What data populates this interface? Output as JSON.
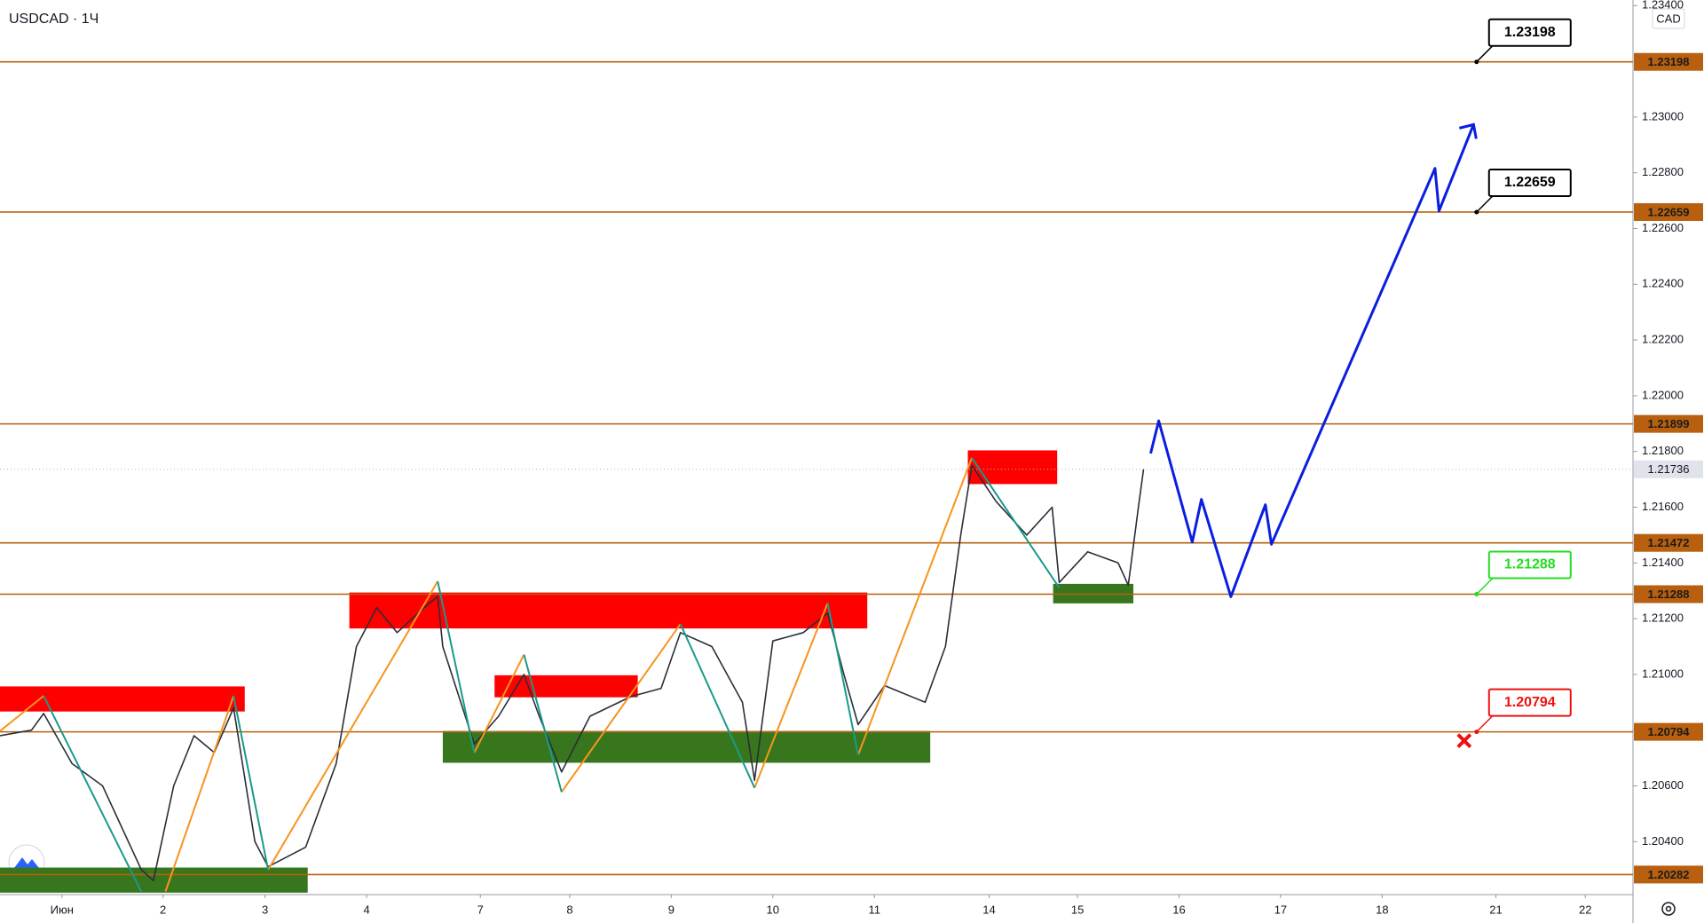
{
  "chart_data": {
    "type": "line",
    "title": "USDCAD · 1Ч",
    "currency": "CAD",
    "xlim": [
      -0.61,
      15.47
    ],
    "xticks": [
      {
        "value": 0,
        "label": "Июн"
      },
      {
        "value": 0.995,
        "label": "2"
      },
      {
        "value": 2.0,
        "label": "3"
      },
      {
        "value": 3.0,
        "label": "4"
      },
      {
        "value": 4.12,
        "label": "7"
      },
      {
        "value": 5.0,
        "label": "8"
      },
      {
        "value": 6.0,
        "label": "9"
      },
      {
        "value": 7.0,
        "label": "10"
      },
      {
        "value": 8.0,
        "label": "11"
      },
      {
        "value": 9.13,
        "label": "14"
      },
      {
        "value": 10.0,
        "label": "15"
      },
      {
        "value": 11.0,
        "label": "16"
      },
      {
        "value": 12.0,
        "label": "17"
      },
      {
        "value": 13.0,
        "label": "18"
      },
      {
        "value": 14.12,
        "label": "21"
      },
      {
        "value": 15.0,
        "label": "22"
      }
    ],
    "ylim": [
      1.2021,
      1.2342
    ],
    "yticks": [
      {
        "value": 1.204,
        "label": "1.20400"
      },
      {
        "value": 1.206,
        "label": "1.20600"
      },
      {
        "value": 1.208,
        "label": "1.20800"
      },
      {
        "value": 1.21,
        "label": "1.21000"
      },
      {
        "value": 1.212,
        "label": "1.21200"
      },
      {
        "value": 1.214,
        "label": "1.21400"
      },
      {
        "value": 1.216,
        "label": "1.21600"
      },
      {
        "value": 1.218,
        "label": "1.21800"
      },
      {
        "value": 1.22,
        "label": "1.22000"
      },
      {
        "value": 1.222,
        "label": "1.22200"
      },
      {
        "value": 1.224,
        "label": "1.22400"
      },
      {
        "value": 1.226,
        "label": "1.22600"
      },
      {
        "value": 1.228,
        "label": "1.22800"
      },
      {
        "value": 1.23,
        "label": "1.23000"
      },
      {
        "value": 1.234,
        "label": "1.23400"
      }
    ],
    "levels": [
      1.23198,
      1.22659,
      1.21899,
      1.21472,
      1.21288,
      1.20794,
      1.20282
    ],
    "level_color": "#b8600f",
    "last_price": 1.21736,
    "zones": [
      {
        "x0": -0.61,
        "x1": 1.8,
        "y0": 1.20867,
        "y1": 1.20957,
        "color": "#ff0000"
      },
      {
        "x0": 2.83,
        "x1": 7.93,
        "y0": 1.21165,
        "y1": 1.21294,
        "color": "#ff0000"
      },
      {
        "x0": 4.26,
        "x1": 5.67,
        "y0": 1.20918,
        "y1": 1.20997,
        "color": "#ff0000"
      },
      {
        "x0": 8.92,
        "x1": 9.8,
        "y0": 1.21683,
        "y1": 1.21804,
        "color": "#ff0000"
      },
      {
        "x0": -0.61,
        "x1": 2.42,
        "y0": 1.20217,
        "y1": 1.20307,
        "color": "#38761d"
      },
      {
        "x0": 3.75,
        "x1": 8.55,
        "y0": 1.20683,
        "y1": 1.20797,
        "color": "#38761d"
      },
      {
        "x0": 9.76,
        "x1": 10.55,
        "y0": 1.21255,
        "y1": 1.21325,
        "color": "#38761d"
      }
    ],
    "series": [
      {
        "role": "price",
        "color": "#2a2e39",
        "width": 1.6,
        "x": [
          -0.61,
          -0.3,
          -0.18,
          0.1,
          0.4,
          0.78,
          0.9,
          1.1,
          1.3,
          1.5,
          1.69,
          1.9,
          2.03,
          2.4,
          2.7,
          2.9,
          3.1,
          3.3,
          3.6,
          3.7,
          3.75,
          4.06,
          4.3,
          4.55,
          4.7,
          4.92,
          5.2,
          5.6,
          5.9,
          6.09,
          6.4,
          6.7,
          6.82,
          7.0,
          7.3,
          7.54,
          7.7,
          7.84,
          8.1,
          8.5,
          8.7,
          8.85,
          8.96,
          9.2,
          9.5,
          9.75,
          9.82,
          10.1,
          10.4,
          10.5,
          10.6,
          10.65
        ],
        "values": [
          1.2078,
          1.208,
          1.2086,
          1.2068,
          1.206,
          1.203,
          1.2026,
          1.206,
          1.2078,
          1.2072,
          1.2088,
          1.204,
          1.2031,
          1.2038,
          1.2068,
          1.211,
          1.2124,
          1.2115,
          1.2125,
          1.2128,
          1.211,
          1.2075,
          1.2085,
          1.21,
          1.2085,
          1.2065,
          1.2085,
          1.2092,
          1.2095,
          1.2115,
          1.211,
          1.209,
          1.2062,
          1.2112,
          1.2115,
          1.2122,
          1.21,
          1.2082,
          1.2096,
          1.209,
          1.211,
          1.215,
          1.2175,
          1.2162,
          1.215,
          1.216,
          1.2133,
          1.2144,
          1.214,
          1.2132,
          1.216,
          1.21736
        ]
      },
      {
        "role": "up-leg",
        "color": "#f7941d",
        "width": 2,
        "x": [
          -0.61,
          -0.18,
          null,
          1.02,
          1.69,
          null,
          2.03,
          3.7,
          null,
          4.06,
          4.55,
          null,
          4.92,
          6.09,
          null,
          6.82,
          7.54,
          null,
          7.84,
          8.96
        ],
        "values": [
          1.20797,
          1.20923,
          null,
          1.20221,
          1.20923,
          null,
          1.20299,
          1.21334,
          null,
          1.20719,
          1.21071,
          null,
          1.20578,
          1.21181,
          null,
          1.20593,
          1.21256,
          null,
          1.20711,
          1.21777
        ]
      },
      {
        "role": "down-leg",
        "color": "#1a9a8a",
        "width": 2,
        "x": [
          -0.18,
          0.78,
          null,
          1.69,
          2.03,
          null,
          3.7,
          4.06,
          null,
          4.55,
          4.92,
          null,
          6.09,
          6.82,
          null,
          7.54,
          7.84,
          null,
          8.96,
          9.82
        ],
        "values": [
          1.20923,
          1.20221,
          null,
          1.20923,
          1.20299,
          null,
          1.21334,
          1.20719,
          null,
          1.21071,
          1.20578,
          null,
          1.21181,
          1.20593,
          null,
          1.21256,
          1.20711,
          null,
          1.21777,
          1.21311
        ]
      },
      {
        "role": "forecast",
        "color": "#0a1ee0",
        "width": 3,
        "x": [
          10.72,
          10.8,
          11.13,
          11.22,
          11.51,
          11.85,
          11.91,
          13.52,
          13.56,
          13.9
        ],
        "values": [
          1.21793,
          1.2191,
          1.21475,
          1.21628,
          1.21279,
          1.21609,
          1.21467,
          1.22816,
          1.22663,
          1.22973
        ]
      }
    ],
    "callout_x": 13.93,
    "callouts": [
      {
        "value": 1.23198,
        "color": "#000000"
      },
      {
        "value": 1.22659,
        "color": "#000000"
      },
      {
        "value": 1.21288,
        "color": "#22dd22"
      },
      {
        "value": 1.20794,
        "color": "#ee1111"
      }
    ]
  }
}
